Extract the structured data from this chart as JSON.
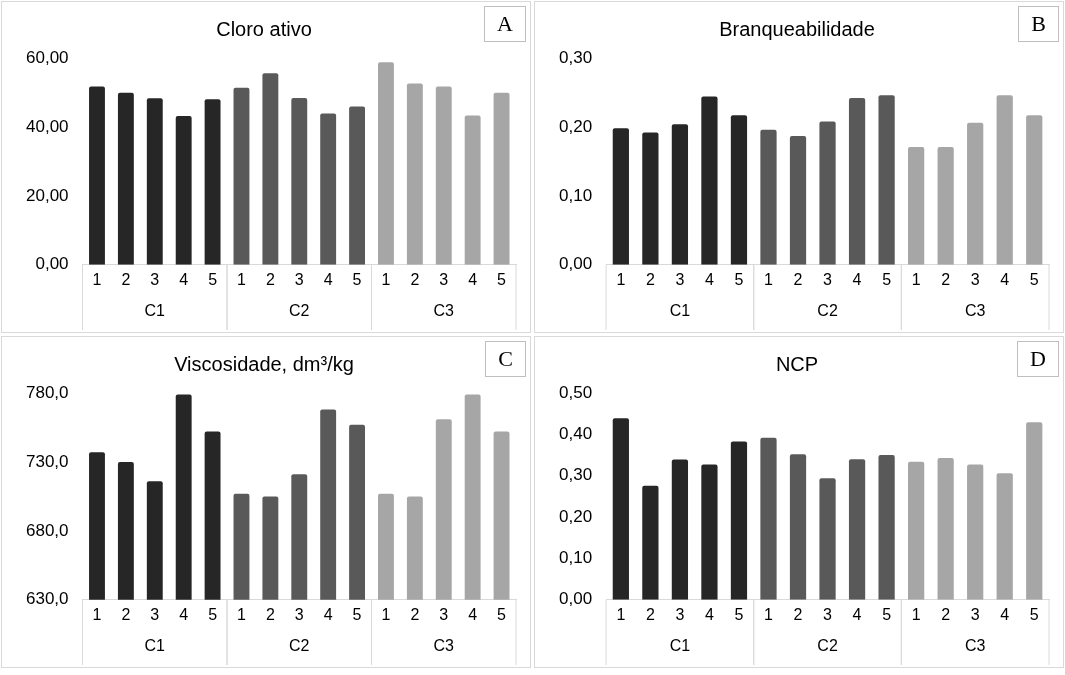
{
  "chart_data": [
    {
      "type": "bar",
      "title": "Cloro ativo",
      "annotations": [
        "A"
      ],
      "categories": [
        "1",
        "2",
        "3",
        "4",
        "5",
        "1",
        "2",
        "3",
        "4",
        "5",
        "1",
        "2",
        "3",
        "4",
        "5"
      ],
      "ylim": [
        0,
        60
      ],
      "yticks": [
        {
          "value": 0,
          "label": "0,00"
        },
        {
          "value": 20,
          "label": "20,00"
        },
        {
          "value": 40,
          "label": "40,00"
        },
        {
          "value": 60,
          "label": "60,00"
        }
      ],
      "legend": false,
      "series": [
        {
          "name": "C1",
          "color": "#262626",
          "values": [
            51.7,
            49.9,
            48.3,
            43.2,
            48.0,
            null,
            null,
            null,
            null,
            null,
            null,
            null,
            null,
            null,
            null
          ]
        },
        {
          "name": "C2",
          "color": "#595959",
          "values": [
            null,
            null,
            null,
            null,
            null,
            51.4,
            55.6,
            48.4,
            43.9,
            45.9,
            null,
            null,
            null,
            null,
            null
          ]
        },
        {
          "name": "C3",
          "color": "#a6a6a6",
          "values": [
            null,
            null,
            null,
            null,
            null,
            null,
            null,
            null,
            null,
            null,
            58.8,
            52.6,
            51.7,
            43.3,
            49.9
          ]
        }
      ]
    },
    {
      "type": "bar",
      "title": "Branqueabilidade",
      "annotations": [
        "B"
      ],
      "categories": [
        "1",
        "2",
        "3",
        "4",
        "5",
        "1",
        "2",
        "3",
        "4",
        "5",
        "1",
        "2",
        "3",
        "4",
        "5"
      ],
      "ylim": [
        0,
        0.3
      ],
      "yticks": [
        {
          "value": 0,
          "label": "0,00"
        },
        {
          "value": 0.1,
          "label": "0,10"
        },
        {
          "value": 0.2,
          "label": "0,20"
        },
        {
          "value": 0.3,
          "label": "0,30"
        }
      ],
      "legend": false,
      "series": [
        {
          "name": "C1",
          "color": "#262626",
          "values": [
            0.198,
            0.192,
            0.204,
            0.244,
            0.217,
            null,
            null,
            null,
            null,
            null,
            null,
            null,
            null,
            null,
            null
          ]
        },
        {
          "name": "C2",
          "color": "#595959",
          "values": [
            null,
            null,
            null,
            null,
            null,
            0.196,
            0.187,
            0.208,
            0.242,
            0.246,
            null,
            null,
            null,
            null,
            null
          ]
        },
        {
          "name": "C3",
          "color": "#a6a6a6",
          "values": [
            null,
            null,
            null,
            null,
            null,
            null,
            null,
            null,
            null,
            null,
            0.171,
            0.171,
            0.206,
            0.246,
            0.217
          ]
        }
      ]
    },
    {
      "type": "bar",
      "title": "Viscosidade, dm³/kg",
      "annotations": [
        "C"
      ],
      "categories": [
        "1",
        "2",
        "3",
        "4",
        "5",
        "1",
        "2",
        "3",
        "4",
        "5",
        "1",
        "2",
        "3",
        "4",
        "5"
      ],
      "ylim": [
        630,
        780
      ],
      "yticks": [
        {
          "value": 630,
          "label": "630,0"
        },
        {
          "value": 680,
          "label": "680,0"
        },
        {
          "value": 730,
          "label": "730,0"
        },
        {
          "value": 780,
          "label": "780,0"
        }
      ],
      "legend": false,
      "series": [
        {
          "name": "C1",
          "color": "#262626",
          "values": [
            737,
            730,
            716,
            779,
            752,
            null,
            null,
            null,
            null,
            null,
            null,
            null,
            null,
            null,
            null
          ]
        },
        {
          "name": "C2",
          "color": "#595959",
          "values": [
            null,
            null,
            null,
            null,
            null,
            707,
            705,
            721,
            768,
            757,
            null,
            null,
            null,
            null,
            null
          ]
        },
        {
          "name": "C3",
          "color": "#a6a6a6",
          "values": [
            null,
            null,
            null,
            null,
            null,
            null,
            null,
            null,
            null,
            null,
            707,
            705,
            761,
            779,
            752
          ]
        }
      ]
    },
    {
      "type": "bar",
      "title": "NCP",
      "annotations": [
        "D"
      ],
      "categories": [
        "1",
        "2",
        "3",
        "4",
        "5",
        "1",
        "2",
        "3",
        "4",
        "5",
        "1",
        "2",
        "3",
        "4",
        "5"
      ],
      "ylim": [
        0,
        0.5
      ],
      "yticks": [
        {
          "value": 0,
          "label": "0,00"
        },
        {
          "value": 0.1,
          "label": "0,10"
        },
        {
          "value": 0.2,
          "label": "0,20"
        },
        {
          "value": 0.3,
          "label": "0,30"
        },
        {
          "value": 0.4,
          "label": "0,40"
        },
        {
          "value": 0.5,
          "label": "0,50"
        }
      ],
      "legend": false,
      "series": [
        {
          "name": "C1",
          "color": "#262626",
          "values": [
            0.439,
            0.276,
            0.339,
            0.327,
            0.383,
            null,
            null,
            null,
            null,
            null,
            null,
            null,
            null,
            null,
            null
          ]
        },
        {
          "name": "C2",
          "color": "#595959",
          "values": [
            null,
            null,
            null,
            null,
            null,
            0.392,
            0.352,
            0.294,
            0.34,
            0.35,
            null,
            null,
            null,
            null,
            null
          ]
        },
        {
          "name": "C3",
          "color": "#a6a6a6",
          "values": [
            null,
            null,
            null,
            null,
            null,
            null,
            null,
            null,
            null,
            null,
            0.334,
            0.343,
            0.327,
            0.306,
            0.429
          ]
        }
      ]
    }
  ]
}
